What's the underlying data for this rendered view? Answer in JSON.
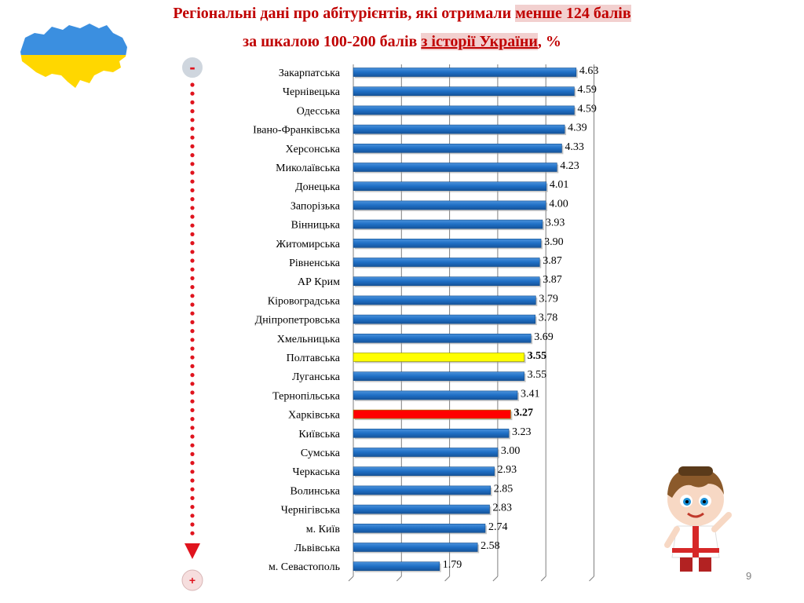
{
  "title": {
    "line1_prefix": "Регіональні дані про абітурієнтів, які отримали ",
    "line1_highlight": "менше 124 балів",
    "line2_prefix": "за шкалою 100-200 балів ",
    "line2_subject": "з історії України",
    "line2_suffix": ", %"
  },
  "scale_labels": {
    "top": "-",
    "bottom": "+"
  },
  "slide_number": "9",
  "colors": {
    "title": "#c00000",
    "bar_default": "#1f6fc5",
    "bar_poltava": "#ffff00",
    "bar_kharkiv": "#ff0000",
    "arrow": "#e0141e",
    "gridline": "#7f7f7f"
  },
  "icons": {
    "map": "ukraine-flag-map-icon",
    "mascot": "ukrainian-boy-mascot-icon"
  },
  "chart_data": {
    "type": "bar",
    "orientation": "horizontal",
    "categories": [
      "Закарпатська",
      "Чернівецька",
      "Одесська",
      "Івано-Франківська",
      "Херсонська",
      "Миколаївська",
      "Донецька",
      "Запорізька",
      "Вінницька",
      "Житомирська",
      "Рівненська",
      "АР Крим",
      "Кіровоградська",
      "Дніпропетровська",
      "Хмельницька",
      "Полтавська",
      "Луганська",
      "Тернопільська",
      "Харківська",
      "Київська",
      "Сумська",
      "Черкаська",
      "Волинська",
      "Чернігівська",
      "м. Київ",
      "Львівська",
      "м. Севастополь"
    ],
    "values": [
      4.63,
      4.59,
      4.59,
      4.39,
      4.33,
      4.23,
      4.01,
      4.0,
      3.93,
      3.9,
      3.87,
      3.87,
      3.79,
      3.78,
      3.69,
      3.55,
      3.55,
      3.41,
      3.27,
      3.23,
      3.0,
      2.93,
      2.85,
      2.83,
      2.74,
      2.58,
      1.79
    ],
    "value_labels": [
      "4.63",
      "4.59",
      "4.59",
      "4.39",
      "4.33",
      "4.23",
      "4.01",
      "4.00",
      "3.93",
      "3.90",
      "3.87",
      "3.87",
      "3.79",
      "3.78",
      "3.69",
      "3.55",
      "3.55",
      "3.41",
      "3.27",
      "3.23",
      "3.00",
      "2.93",
      "2.85",
      "2.83",
      "2.74",
      "2.58",
      "1.79"
    ],
    "highlighted": {
      "Полтавська": "#ffff00",
      "Харківська": "#ff0000"
    },
    "bold_value_labels": [
      "Полтавська",
      "Харківська"
    ],
    "xlim": [
      0,
      5
    ],
    "grid": true,
    "legend": "none"
  }
}
